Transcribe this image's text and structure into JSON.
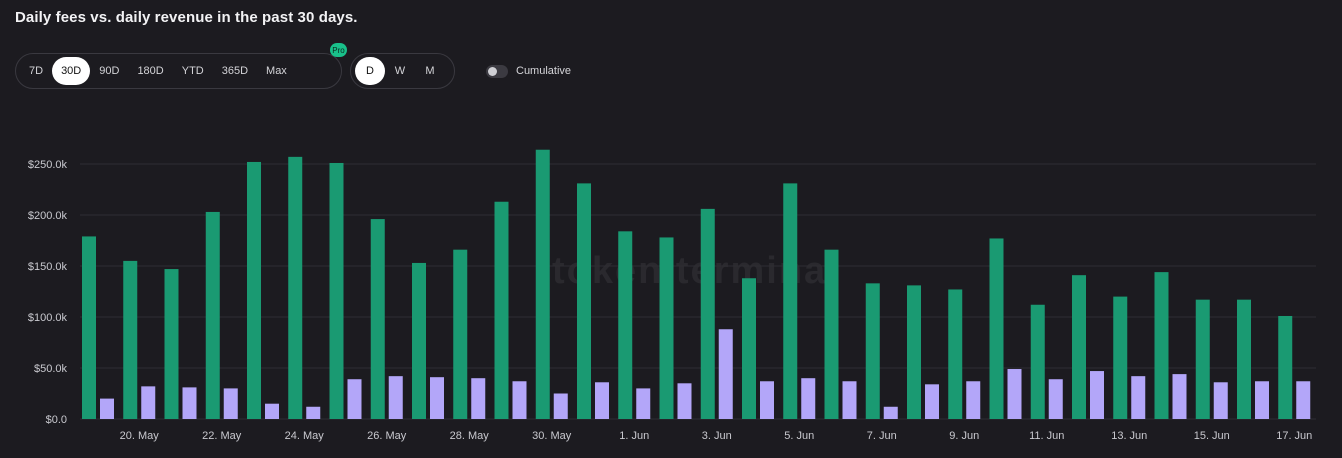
{
  "header": {
    "title": "Daily fees vs. daily revenue in the past 30 days."
  },
  "range_buttons": [
    {
      "label": "7D",
      "active": false
    },
    {
      "label": "30D",
      "active": true
    },
    {
      "label": "90D",
      "active": false
    },
    {
      "label": "180D",
      "active": false
    },
    {
      "label": "YTD",
      "active": false
    },
    {
      "label": "365D",
      "active": false
    },
    {
      "label": "Max",
      "active": false
    }
  ],
  "pro_badge": "Pro",
  "interval_buttons": [
    {
      "label": "D",
      "active": true
    },
    {
      "label": "W",
      "active": false
    },
    {
      "label": "M",
      "active": false
    }
  ],
  "cumulative": {
    "label": "Cumulative",
    "on": false
  },
  "watermark": "token terminal",
  "colors": {
    "fees": "#1a9a72",
    "revenue": "#b3a6f9",
    "grid": "#2e2d33",
    "background": "#1c1b20"
  },
  "chart_data": {
    "type": "bar",
    "categories": [
      "19 May",
      "20 May",
      "21 May",
      "22 May",
      "23 May",
      "24 May",
      "25 May",
      "26 May",
      "27 May",
      "28 May",
      "29 May",
      "30 May",
      "31 May",
      "1 Jun",
      "2 Jun",
      "3 Jun",
      "4 Jun",
      "5 Jun",
      "6 Jun",
      "7 Jun",
      "8 Jun",
      "9 Jun",
      "10 Jun",
      "11 Jun",
      "12 Jun",
      "13 Jun",
      "14 Jun",
      "15 Jun",
      "16 Jun",
      "17 Jun"
    ],
    "x_tick_labels": [
      "20. May",
      "22. May",
      "24. May",
      "26. May",
      "28. May",
      "30. May",
      "1. Jun",
      "3. Jun",
      "5. Jun",
      "7. Jun",
      "9. Jun",
      "11. Jun",
      "13. Jun",
      "15. Jun",
      "17. Jun"
    ],
    "series": [
      {
        "values": [
          179000,
          155000,
          147000,
          203000,
          252000,
          257000,
          251000,
          196000,
          153000,
          166000,
          213000,
          264000,
          231000,
          184000,
          178000,
          206000,
          138000,
          231000,
          166000,
          133000,
          131000,
          127000,
          177000,
          112000,
          141000,
          120000,
          144000,
          117000,
          117000,
          101000
        ]
      },
      {
        "values": [
          20000,
          32000,
          31000,
          30000,
          15000,
          12000,
          39000,
          42000,
          41000,
          40000,
          37000,
          25000,
          36000,
          30000,
          35000,
          88000,
          37000,
          40000,
          37000,
          12000,
          34000,
          37000,
          49000,
          39000,
          47000,
          42000,
          44000,
          36000,
          37000,
          37000
        ]
      }
    ],
    "y_tick_labels": [
      "$0.0",
      "$50.0k",
      "$100.0k",
      "$150.0k",
      "$200.0k",
      "$250.0k"
    ],
    "ylim": [
      0,
      270000
    ],
    "grid": true
  }
}
